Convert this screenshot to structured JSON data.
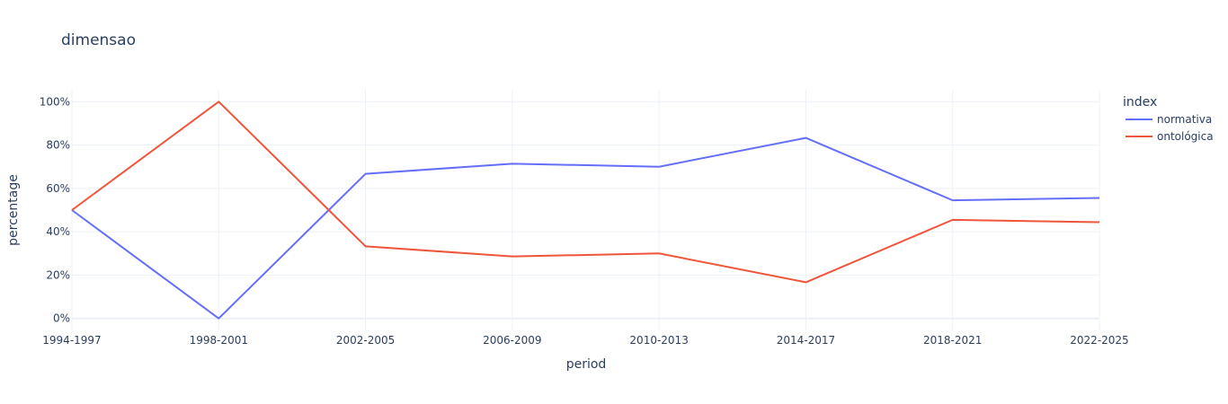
{
  "chart_data": {
    "type": "line",
    "title": "dimensao",
    "xlabel": "period",
    "ylabel": "percentage",
    "categories": [
      "1994-1997",
      "1998-2001",
      "2002-2005",
      "2006-2009",
      "2010-2013",
      "2014-2017",
      "2018-2021",
      "2022-2025"
    ],
    "y_tick_labels": [
      "0%",
      "20%",
      "40%",
      "60%",
      "80%",
      "100%"
    ],
    "y_ticks": [
      0,
      20,
      40,
      60,
      80,
      100
    ],
    "ylim": [
      -5.5,
      105.5
    ],
    "grid": true,
    "legend": {
      "title": "index",
      "placement": "top-right, outside plot"
    },
    "series": [
      {
        "name": "normativa",
        "color": "#636efa",
        "values": [
          50,
          0,
          66.7,
          71.4,
          70.0,
          83.3,
          54.5,
          55.6
        ]
      },
      {
        "name": "ontológica",
        "color": "#ef553b",
        "values": [
          50,
          100,
          33.3,
          28.6,
          30.0,
          16.7,
          45.5,
          44.4
        ]
      }
    ]
  }
}
